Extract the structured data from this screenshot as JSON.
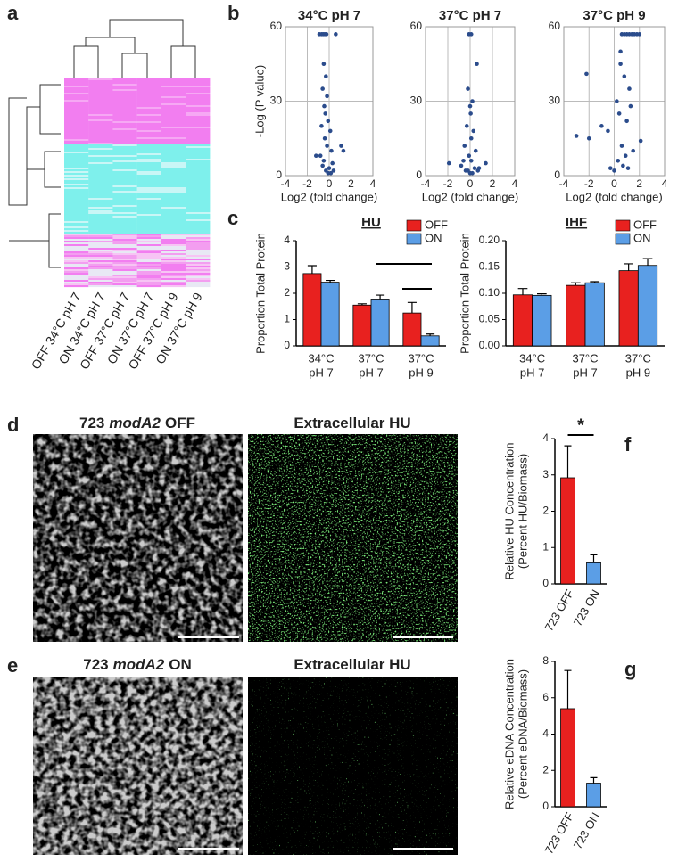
{
  "panel_labels": [
    "a",
    "b",
    "c",
    "d",
    "e",
    "f",
    "g"
  ],
  "heatmap": {
    "columns": [
      "OFF 34°C pH 7",
      "ON 34°C pH 7",
      "OFF 37°C pH 7",
      "ON 37°C pH 7",
      "OFF 37°C pH 9",
      "ON 37°C pH 9"
    ]
  },
  "images": [
    {
      "title": [
        "723",
        "modA2",
        "OFF"
      ]
    },
    {
      "title": [
        "Extracellular HU"
      ]
    },
    {
      "title": [
        "723",
        "modA2",
        "ON"
      ]
    },
    {
      "title": [
        "Extracellular HU"
      ]
    }
  ],
  "chart_data": [
    {
      "type": "scatter",
      "title": "34°C pH 7",
      "xlabel": "Log2 (fold change)",
      "ylabel": "-Log (P value)",
      "color": "#2b4c8c",
      "x": [
        -0.9,
        -0.7,
        -0.55,
        -0.4,
        -0.25,
        0.6,
        -0.5,
        -0.3,
        -0.6,
        -0.2,
        -0.45,
        -0.35,
        -0.1,
        0.1,
        -0.7,
        -0.4,
        -0.2,
        0.2,
        -0.8,
        -0.5,
        0.3,
        1.1,
        1.3,
        -1.2,
        -0.6,
        0.0,
        -0.3,
        0.4,
        -0.1,
        0.15
      ],
      "y": [
        57,
        57,
        57,
        57,
        57,
        57,
        45,
        40,
        35,
        32,
        28,
        25,
        22,
        18,
        20,
        15,
        12,
        10,
        8,
        6,
        5,
        12,
        10,
        8,
        4,
        3,
        2,
        2,
        1,
        1
      ],
      "xlim": [
        -4,
        4
      ],
      "xticks": [
        -4,
        -2,
        0,
        2,
        4
      ],
      "ylim": [
        0,
        60
      ],
      "yticks": [
        0,
        30,
        60
      ],
      "grid": true
    },
    {
      "type": "scatter",
      "title": "37°C pH 7",
      "xlabel": "Log2 (fold change)",
      "color": "#2b4c8c",
      "x": [
        -0.1,
        0.1,
        0.6,
        -0.2,
        0.2,
        0,
        -0.3,
        0.3,
        -0.5,
        0.5,
        -1.9,
        1.4,
        -0.8,
        0.8,
        -0.1,
        0.1,
        0.4,
        -0.4,
        0,
        0.2,
        -0.2,
        0.1,
        0.05,
        -0.6,
        0.7
      ],
      "y": [
        57,
        57,
        45,
        35,
        30,
        28,
        20,
        18,
        12,
        10,
        5,
        5,
        4,
        3,
        8,
        6,
        3,
        2,
        1,
        1,
        2,
        15,
        25,
        6,
        2
      ],
      "xlim": [
        -4,
        4
      ],
      "xticks": [
        -4,
        -2,
        0,
        2,
        4
      ],
      "ylim": [
        0,
        60
      ],
      "yticks": [
        0,
        30,
        60
      ],
      "grid": true
    },
    {
      "type": "scatter",
      "title": "37°C pH 9",
      "xlabel": "Log2 (fold change)",
      "color": "#2b4c8c",
      "x": [
        0.6,
        0.8,
        1.0,
        1.2,
        1.4,
        1.6,
        1.8,
        2.0,
        -2.2,
        -2.0,
        -1.0,
        0.5,
        0.8,
        1.2,
        0.2,
        0.4,
        1.0,
        -0.5,
        -3.0,
        0.6,
        1.5,
        0.9,
        0.3,
        0.7,
        1.1,
        0,
        -0.3,
        1.3,
        2.1,
        0.5
      ],
      "y": [
        57,
        57,
        57,
        57,
        57,
        57,
        57,
        57,
        41,
        15,
        20,
        45,
        40,
        35,
        30,
        25,
        22,
        18,
        16,
        12,
        10,
        8,
        6,
        4,
        3,
        2,
        3,
        28,
        14,
        50
      ],
      "xlim": [
        -4,
        4
      ],
      "xticks": [
        -4,
        -2,
        0,
        2,
        4
      ],
      "ylim": [
        0,
        60
      ],
      "yticks": [
        0,
        30,
        60
      ],
      "grid": true
    },
    {
      "type": "bar",
      "title": "HU",
      "ylabel": "Proportion Total Protein",
      "categories": [
        [
          "34°C",
          "pH 7"
        ],
        [
          "37°C",
          "pH 7"
        ],
        [
          "37°C",
          "pH 9"
        ]
      ],
      "series": [
        {
          "name": "OFF",
          "color": "#e8211f",
          "values": [
            2.75,
            1.55,
            1.25
          ],
          "errors": [
            0.3,
            0.05,
            0.4
          ]
        },
        {
          "name": "ON",
          "color": "#5b9ee6",
          "values": [
            2.42,
            1.78,
            0.38
          ],
          "errors": [
            0.07,
            0.15,
            0.07
          ]
        }
      ],
      "ylim": [
        0,
        4
      ],
      "yticks": [
        0,
        1,
        2,
        3,
        4
      ]
    },
    {
      "type": "bar",
      "title": "IHF",
      "ylabel": "Proportion Total Protein",
      "categories": [
        [
          "34°C",
          "pH 7"
        ],
        [
          "37°C",
          "pH 7"
        ],
        [
          "37°C",
          "pH 9"
        ]
      ],
      "series": [
        {
          "name": "OFF",
          "color": "#e8211f",
          "values": [
            0.097,
            0.115,
            0.143
          ],
          "errors": [
            0.012,
            0.005,
            0.013
          ]
        },
        {
          "name": "ON",
          "color": "#5b9ee6",
          "values": [
            0.096,
            0.12,
            0.153
          ],
          "errors": [
            0.003,
            0.002,
            0.013
          ]
        }
      ],
      "ylim": [
        0,
        0.2
      ],
      "yticks": [
        {
          "value": 0,
          "label": "0.00"
        },
        {
          "value": 0.05,
          "label": "0.05"
        },
        {
          "value": 0.1,
          "label": "0.10"
        },
        {
          "value": 0.15,
          "label": "0.15"
        },
        {
          "value": 0.2,
          "label": "0.20"
        }
      ]
    },
    {
      "type": "bar",
      "ylabel": [
        "Relative HU Concentration",
        "(Percent HU/Biomass)"
      ],
      "annotation": "*",
      "categories": [
        "723 OFF",
        "723 ON"
      ],
      "colors": [
        "#e8211f",
        "#5b9ee6"
      ],
      "values": [
        2.92,
        0.58
      ],
      "errors": [
        0.88,
        0.22
      ],
      "ylim": [
        0,
        4
      ],
      "yticks": [
        0,
        1,
        2,
        3,
        4
      ]
    },
    {
      "type": "bar",
      "ylabel": [
        "Relative eDNA Concentration",
        "(Percent eDNA/Biomass)"
      ],
      "categories": [
        "723 OFF",
        "723 ON"
      ],
      "colors": [
        "#e8211f",
        "#5b9ee6"
      ],
      "values": [
        5.4,
        1.3
      ],
      "errors": [
        2.1,
        0.3
      ],
      "ylim": [
        0,
        8
      ],
      "yticks": [
        0,
        2,
        4,
        6,
        8
      ]
    }
  ]
}
